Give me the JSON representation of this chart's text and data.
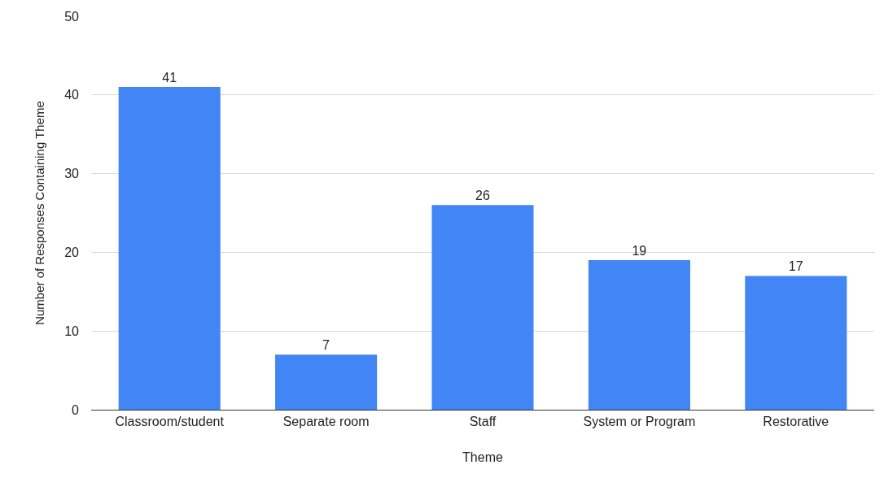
{
  "chart_data": {
    "type": "bar",
    "xlabel": "Theme",
    "ylabel": "Number of Responses Containing Theme",
    "categories": [
      "Classroom/student",
      "Separate room",
      "Staff",
      "System or Program",
      "Restorative"
    ],
    "values": [
      41,
      7,
      26,
      19,
      17
    ],
    "color": "#4285f4",
    "ylim": [
      0,
      50
    ],
    "yticks": [
      0,
      10,
      20,
      30,
      40,
      50
    ],
    "grid": "y",
    "data_labels": true,
    "legend": false
  }
}
